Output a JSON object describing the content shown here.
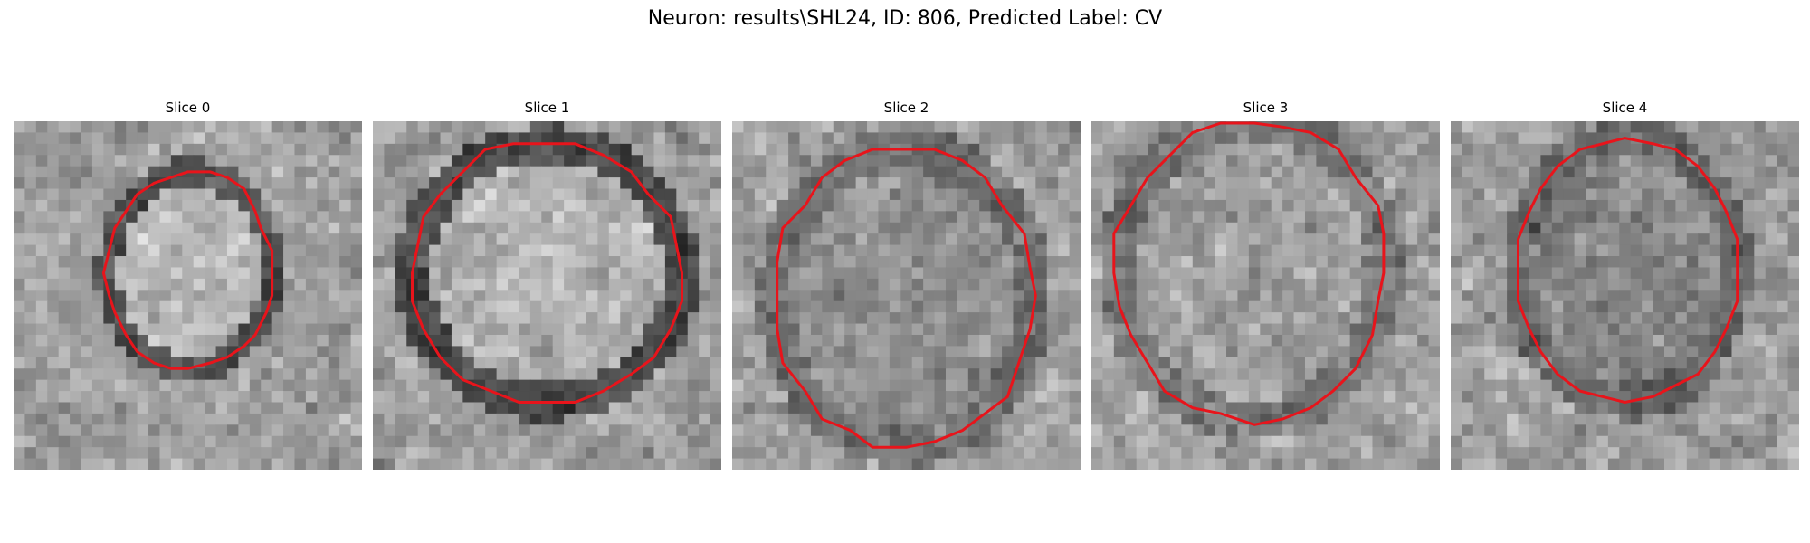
{
  "figure": {
    "title": "Neuron: results\\SHL24, ID: 806, Predicted Label: CV"
  },
  "panels": [
    {
      "title": "Slice 0"
    },
    {
      "title": "Slice 1"
    },
    {
      "title": "Slice 2"
    },
    {
      "title": "Slice 3"
    },
    {
      "title": "Slice 4"
    }
  ],
  "style": {
    "contour_color": "#e8141b",
    "colormap": "grayscale"
  }
}
